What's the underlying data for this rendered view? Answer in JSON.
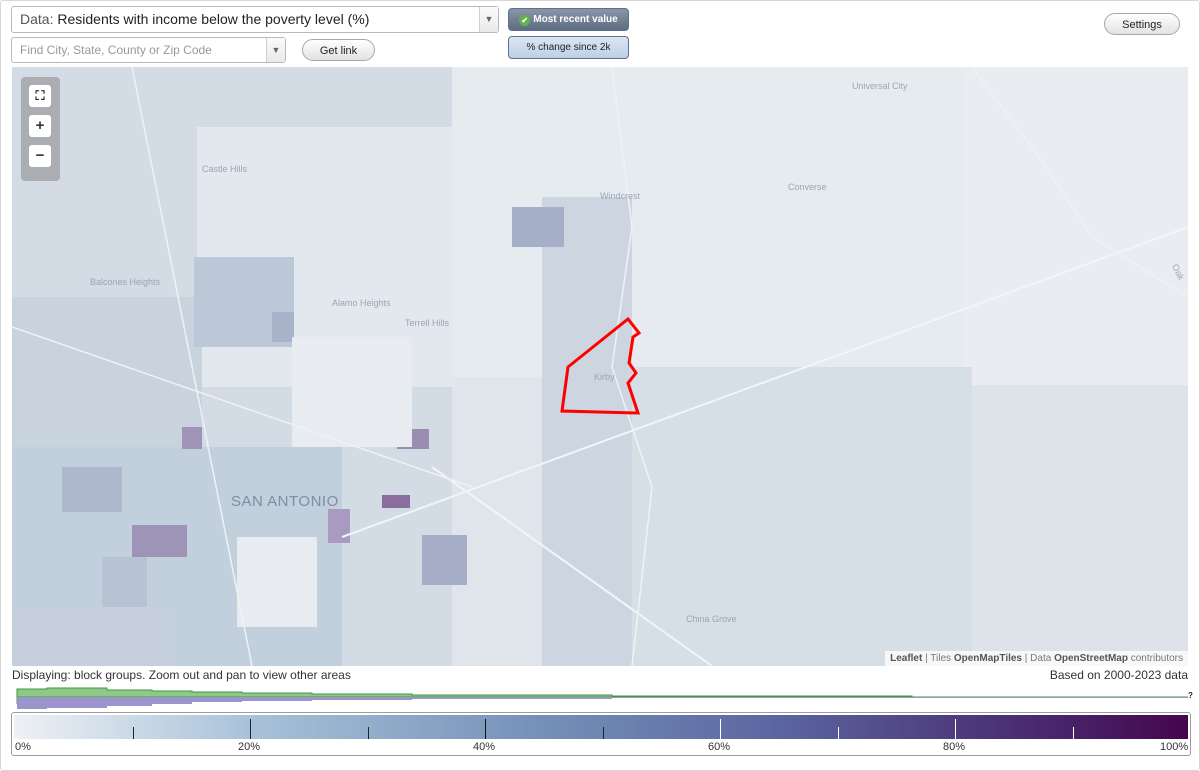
{
  "data_selector": {
    "prefix": "Data:",
    "value": "Residents with income below the poverty level (%)"
  },
  "search": {
    "placeholder": "Find City, State, County or Zip Code",
    "value": ""
  },
  "buttons": {
    "get_link": "Get link",
    "settings": "Settings"
  },
  "toggles": {
    "most_recent": "Most recent value",
    "change_since": "% change since 2k"
  },
  "map": {
    "place_labels": {
      "universal_city": "Universal City",
      "castle_hills": "Castle Hills",
      "windcrest": "Windcrest",
      "converse": "Converse",
      "balcones_heights": "Balcones Heights",
      "alamo_heights": "Alamo Heights",
      "terrell_hills": "Terrell Hills",
      "kirby": "Kirby",
      "san_antonio": "SAN ANTONIO",
      "china_grove": "China Grove",
      "edge_label": "Oak"
    },
    "attribution": {
      "leaflet": "Leaflet",
      "sep1": " | Tiles ",
      "tiles": "OpenMapTiles",
      "sep2": " | Data ",
      "data": "OpenStreetMap",
      "contributors": " contributors"
    },
    "highlight_color": "#ff0000"
  },
  "status": {
    "displaying": "Displaying: block groups. Zoom out and pan to view other areas",
    "based_on": "Based on 2000-2023 data",
    "unknown_marker": "?"
  },
  "legend": {
    "ticks": [
      "0%",
      "20%",
      "40%",
      "60%",
      "80%",
      "100%"
    ],
    "colors": {
      "low": "#eef1f5",
      "mid": "#7490b8",
      "high": "#45064e",
      "histogram_green": "#8fc98a",
      "histogram_purple": "#9c94cc"
    }
  }
}
